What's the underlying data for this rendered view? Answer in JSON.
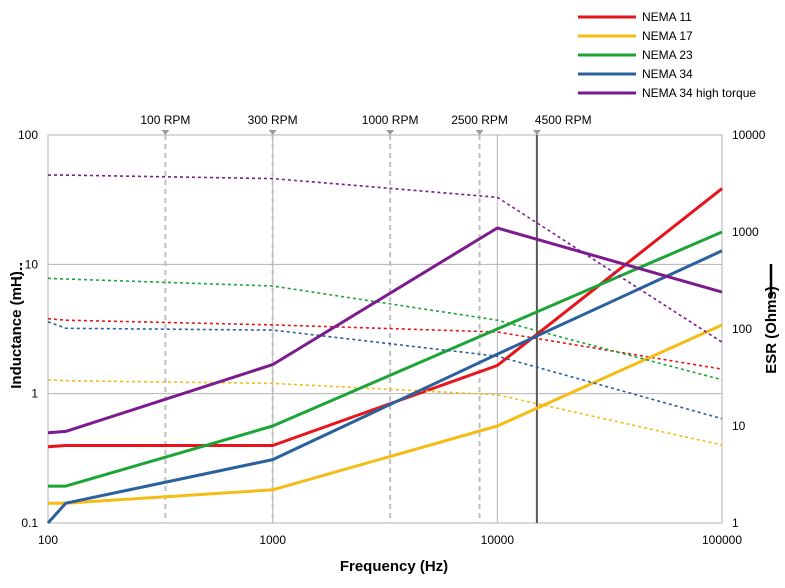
{
  "chart_data": {
    "type": "line",
    "xlabel": "Frequency (Hz)",
    "ylabel_left": "Inductance (mH)",
    "ylabel_right": "ESR (Ohms)",
    "x_scale": "log",
    "y_left_scale": "log",
    "y_right_scale": "log",
    "xlim": [
      100,
      100000
    ],
    "ylim_left": [
      0.1,
      100
    ],
    "ylim_right": [
      1,
      10000
    ],
    "x_ticks": [
      "100",
      "1000",
      "10000",
      "100000"
    ],
    "y_left_ticks": [
      "0.1",
      "1",
      "10",
      "100"
    ],
    "y_right_ticks": [
      "1",
      "10",
      "100",
      "1000",
      "10000"
    ],
    "grid": true,
    "legend_position": "top-right",
    "rpm_markers": [
      {
        "label": "100 RPM",
        "x": 333
      },
      {
        "label": "300 RPM",
        "x": 1000
      },
      {
        "label": "1000 RPM",
        "x": 3333
      },
      {
        "label": "2500 RPM",
        "x": 8333
      },
      {
        "label": "4500 RPM",
        "x": 15000
      }
    ],
    "series": [
      {
        "name": "NEMA 11",
        "color": "#e8141b",
        "inductance_mH": [
          [
            100,
            3.8
          ],
          [
            120,
            3.7
          ],
          [
            1000,
            3.4
          ],
          [
            10000,
            3.0
          ],
          [
            100000,
            1.55
          ]
        ],
        "esr_ohms": [
          [
            100,
            6.1
          ],
          [
            120,
            6.3
          ],
          [
            1000,
            6.3
          ],
          [
            10000,
            42
          ],
          [
            100000,
            2800
          ]
        ]
      },
      {
        "name": "NEMA 17",
        "color": "#f5bc16",
        "inductance_mH": [
          [
            100,
            1.28
          ],
          [
            120,
            1.26
          ],
          [
            1000,
            1.2
          ],
          [
            10000,
            0.98
          ],
          [
            100000,
            0.4
          ]
        ],
        "esr_ohms": [
          [
            100,
            1.6
          ],
          [
            120,
            1.6
          ],
          [
            1000,
            2.2
          ],
          [
            10000,
            10
          ],
          [
            100000,
            110
          ]
        ]
      },
      {
        "name": "NEMA 23",
        "color": "#1ca537",
        "inductance_mH": [
          [
            100,
            7.8
          ],
          [
            120,
            7.7
          ],
          [
            1000,
            6.8
          ],
          [
            10000,
            3.7
          ],
          [
            100000,
            1.28
          ]
        ],
        "esr_ohms": [
          [
            100,
            2.4
          ],
          [
            120,
            2.4
          ],
          [
            1000,
            10
          ],
          [
            10000,
            100
          ],
          [
            100000,
            1000
          ]
        ]
      },
      {
        "name": "NEMA 34",
        "color": "#2a609c",
        "inductance_mH": [
          [
            100,
            3.6
          ],
          [
            120,
            3.2
          ],
          [
            1000,
            3.1
          ],
          [
            10000,
            1.95
          ],
          [
            100000,
            0.64
          ]
        ],
        "esr_ohms": [
          [
            100,
            1
          ],
          [
            120,
            1.6
          ],
          [
            1000,
            4.5
          ],
          [
            10000,
            55
          ],
          [
            100000,
            640
          ]
        ]
      },
      {
        "name": "NEMA 34 high torque",
        "color": "#7b1b8e",
        "inductance_mH": [
          [
            100,
            49
          ],
          [
            120,
            49
          ],
          [
            1000,
            46
          ],
          [
            10000,
            33
          ],
          [
            100000,
            2.5
          ]
        ],
        "esr_ohms": [
          [
            100,
            8.5
          ],
          [
            120,
            8.8
          ],
          [
            1000,
            43
          ],
          [
            10000,
            1100
          ],
          [
            100000,
            240
          ]
        ]
      }
    ]
  }
}
